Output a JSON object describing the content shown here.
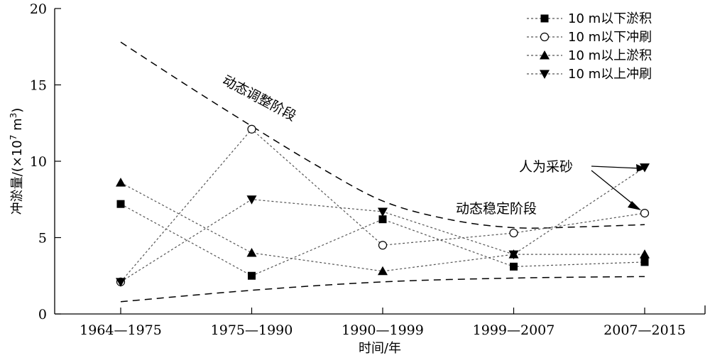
{
  "chart_data": {
    "type": "line",
    "title": "",
    "xlabel": "时间/年",
    "ylabel_main": "冲淤量/(×10",
    "ylabel_exp1": "7",
    "ylabel_mid": " m",
    "ylabel_exp2": "3",
    "ylabel_end": ")",
    "categories": [
      "1964—1975",
      "1975—1990",
      "1990—1999",
      "1999—2007",
      "2007—2015"
    ],
    "ylim": [
      0,
      20
    ],
    "yticks": [
      0,
      5,
      10,
      15,
      20
    ],
    "grid": false,
    "legend_position": "top-right",
    "series": [
      {
        "name": "10 m以下淤积",
        "marker": "square",
        "values": [
          7.2,
          2.5,
          6.2,
          3.1,
          3.4
        ]
      },
      {
        "name": "10 m以下冲刷",
        "marker": "circle",
        "values": [
          2.1,
          12.1,
          4.5,
          5.3,
          6.6
        ]
      },
      {
        "name": "10 m以上淤积",
        "marker": "triangle-up",
        "values": [
          8.6,
          4.0,
          2.8,
          3.9,
          3.9
        ]
      },
      {
        "name": "10 m以上冲刷",
        "marker": "triangle-down",
        "values": [
          2.1,
          7.5,
          6.7,
          3.9,
          9.6
        ]
      }
    ],
    "trend_lines": [
      {
        "x": [
          0,
          0.5,
          1,
          1.5,
          2,
          2.5,
          3,
          3.5,
          4
        ],
        "y": [
          17.8,
          15.0,
          12.3,
          9.7,
          7.4,
          6.2,
          5.65,
          5.7,
          5.85
        ]
      },
      {
        "x": [
          0,
          1,
          2,
          3,
          4
        ],
        "y": [
          0.8,
          1.55,
          2.1,
          2.35,
          2.45
        ]
      }
    ],
    "annotations": [
      {
        "text": "动态调整阶段"
      },
      {
        "text": "动态稳定阶段"
      },
      {
        "text": "人为采砂"
      }
    ]
  }
}
